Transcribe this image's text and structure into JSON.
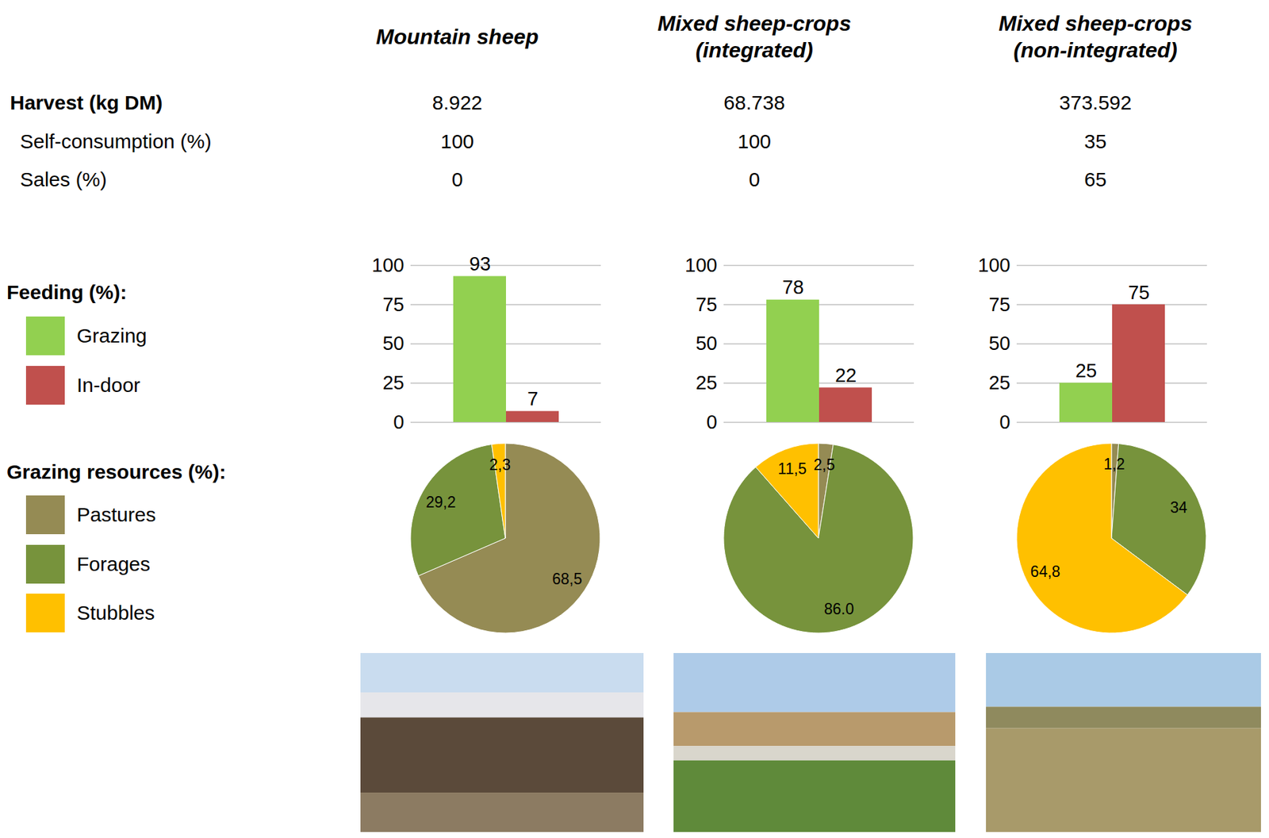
{
  "columns": [
    "Mountain sheep",
    "Mixed sheep-crops (integrated)",
    "Mixed sheep-crops (non-integrated)"
  ],
  "table": {
    "rows": [
      {
        "label": "Harvest (kg DM)",
        "values": [
          8922,
          68738,
          373592
        ],
        "value_labels": [
          "8.922",
          "68.738",
          "373.592"
        ]
      },
      {
        "label": "Self-consumption (%)",
        "values": [
          100,
          100,
          35
        ]
      },
      {
        "label": "Sales (%)",
        "values": [
          0,
          0,
          65
        ]
      }
    ]
  },
  "sections": {
    "feeding": "Feeding (%):",
    "grazing_resources": "Grazing resources (%):"
  },
  "chart_data": [
    {
      "type": "bar",
      "categories": [
        null
      ],
      "series": [
        {
          "name": "Grazing",
          "color": "#92d050",
          "values": [
            93
          ]
        },
        {
          "name": "In-door",
          "color": "#c0504d",
          "values": [
            7
          ]
        }
      ],
      "ylim": [
        0,
        100
      ],
      "yticks": [
        0,
        25,
        50,
        75,
        100
      ],
      "grid": true,
      "data_labels": true,
      "tick_labels": "y",
      "legend": "left"
    },
    {
      "type": "bar",
      "categories": [
        null
      ],
      "series": [
        {
          "name": "Grazing",
          "color": "#92d050",
          "values": [
            78
          ]
        },
        {
          "name": "In-door",
          "color": "#c0504d",
          "values": [
            22
          ]
        }
      ],
      "ylim": [
        0,
        100
      ],
      "yticks": [
        0,
        25,
        50,
        75,
        100
      ],
      "grid": true,
      "data_labels": true,
      "tick_labels": "y",
      "legend": "left"
    },
    {
      "type": "bar",
      "categories": [
        null
      ],
      "series": [
        {
          "name": "Grazing",
          "color": "#92d050",
          "values": [
            25
          ]
        },
        {
          "name": "In-door",
          "color": "#c0504d",
          "values": [
            75
          ]
        }
      ],
      "ylim": [
        0,
        100
      ],
      "yticks": [
        0,
        25,
        50,
        75,
        100
      ],
      "grid": true,
      "data_labels": true,
      "tick_labels": "y",
      "legend": "left"
    },
    {
      "type": "pie",
      "categories": [
        "Pastures",
        "Forages",
        "Stubbles"
      ],
      "values": [
        68.5,
        29.2,
        2.3
      ],
      "value_labels": [
        "68,5",
        "29,2",
        "2,3"
      ],
      "colors": [
        "#958b54",
        "#77933c",
        "#ffc000"
      ],
      "data_labels": true,
      "legend": "left"
    },
    {
      "type": "pie",
      "categories": [
        "Pastures",
        "Forages",
        "Stubbles"
      ],
      "values": [
        2.5,
        86.0,
        11.5
      ],
      "value_labels": [
        "2,5",
        "86.0",
        "11,5"
      ],
      "colors": [
        "#958b54",
        "#77933c",
        "#ffc000"
      ],
      "data_labels": true,
      "legend": "left"
    },
    {
      "type": "pie",
      "categories": [
        "Pastures",
        "Forages",
        "Stubbles"
      ],
      "values": [
        1.2,
        34,
        64.8
      ],
      "value_labels": [
        "1,2",
        "34",
        "64,8"
      ],
      "colors": [
        "#958b54",
        "#77933c",
        "#ffc000"
      ],
      "data_labels": true,
      "legend": "left"
    }
  ]
}
